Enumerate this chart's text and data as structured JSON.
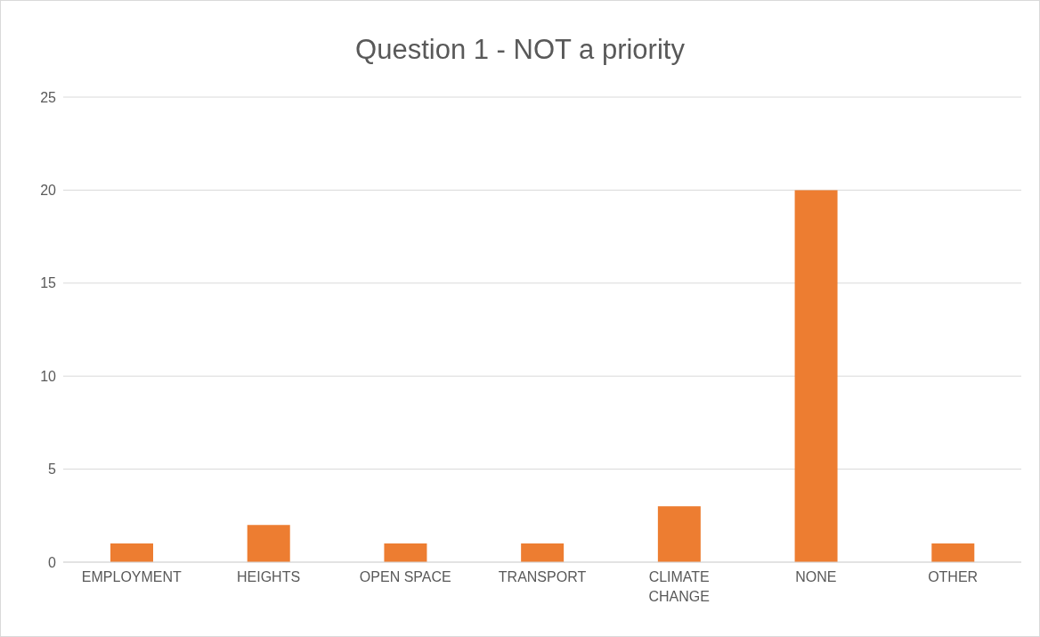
{
  "chart_data": {
    "type": "bar",
    "title": "Question 1 - NOT a priority",
    "categories": [
      "EMPLOYMENT",
      "HEIGHTS",
      "OPEN SPACE",
      "TRANSPORT",
      "CLIMATE CHANGE",
      "NONE",
      "OTHER"
    ],
    "values": [
      1,
      2,
      1,
      1,
      3,
      20,
      1
    ],
    "color": "#ed7d31",
    "ylim": [
      0,
      25
    ],
    "yticks": [
      0,
      5,
      10,
      15,
      20,
      25
    ],
    "grid": "y",
    "legend": false
  }
}
